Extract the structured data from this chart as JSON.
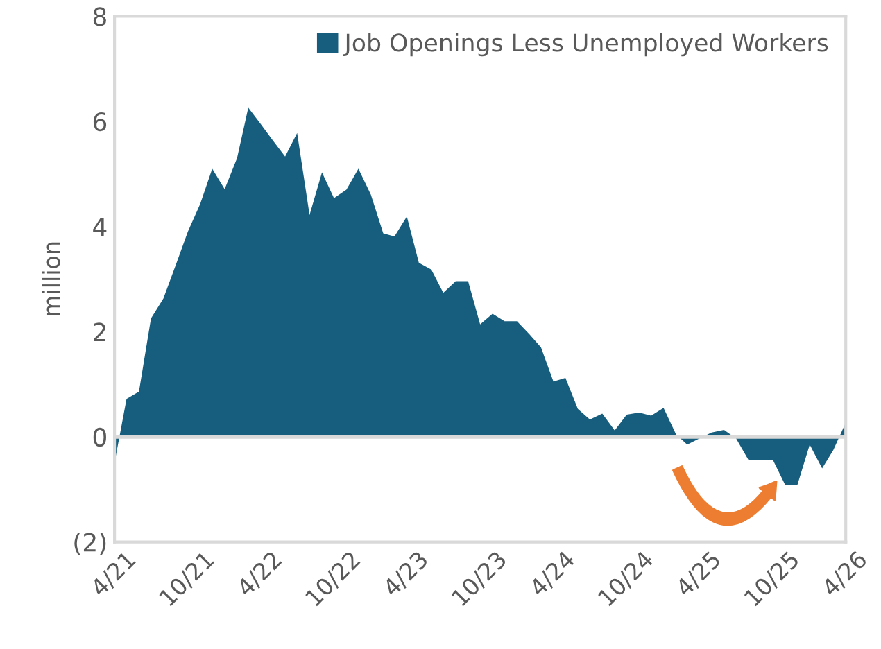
{
  "chart_data": {
    "type": "area",
    "ylabel": "million",
    "x": [
      "2021-04",
      "2021-05",
      "2021-06",
      "2021-07",
      "2021-08",
      "2021-09",
      "2021-10",
      "2021-11",
      "2021-12",
      "2022-01",
      "2022-02",
      "2022-03",
      "2022-04",
      "2022-05",
      "2022-06",
      "2022-07",
      "2022-08",
      "2022-09",
      "2022-10",
      "2022-11",
      "2022-12",
      "2023-01",
      "2023-02",
      "2023-03",
      "2023-04",
      "2023-05",
      "2023-06",
      "2023-07",
      "2023-08",
      "2023-09",
      "2023-10",
      "2023-11",
      "2023-12",
      "2024-01",
      "2024-02",
      "2024-03",
      "2024-04",
      "2024-05",
      "2024-06",
      "2024-07",
      "2024-08",
      "2024-09",
      "2024-10",
      "2024-11",
      "2024-12",
      "2025-01",
      "2025-02",
      "2025-03",
      "2025-04",
      "2025-05",
      "2025-06",
      "2025-07",
      "2025-08",
      "2025-09",
      "2025-10",
      "2025-11",
      "2025-12",
      "2026-01",
      "2026-02",
      "2026-03",
      "2026-04"
    ],
    "series": [
      {
        "name": "Job Openings Less Unemployed Workers",
        "color": "#175e7e",
        "values": [
          -0.5,
          0.72,
          0.86,
          2.25,
          2.63,
          3.27,
          3.9,
          4.43,
          5.1,
          4.71,
          5.3,
          6.26,
          5.95,
          5.64,
          5.33,
          5.78,
          4.22,
          5.03,
          4.54,
          4.7,
          5.1,
          4.61,
          3.87,
          3.81,
          4.19,
          3.31,
          3.18,
          2.74,
          2.96,
          2.96,
          2.14,
          2.34,
          2.2,
          2.2,
          1.95,
          1.7,
          1.05,
          1.12,
          0.53,
          0.33,
          0.44,
          0.12,
          0.42,
          0.46,
          0.4,
          0.55,
          0.05,
          -0.15,
          -0.03,
          0.08,
          0.13,
          -0.03,
          -0.44,
          -0.44,
          -0.44,
          -0.92,
          -0.92,
          -0.15,
          -0.6,
          -0.25,
          0.27
        ]
      }
    ],
    "xlim": [
      "2021-04",
      "2026-04"
    ],
    "xticks": [
      {
        "value": "2021-04",
        "label": "4/21"
      },
      {
        "value": "2021-10",
        "label": "10/21"
      },
      {
        "value": "2022-04",
        "label": "4/22"
      },
      {
        "value": "2022-10",
        "label": "10/22"
      },
      {
        "value": "2023-04",
        "label": "4/23"
      },
      {
        "value": "2023-10",
        "label": "10/23"
      },
      {
        "value": "2024-04",
        "label": "4/24"
      },
      {
        "value": "2024-10",
        "label": "10/24"
      },
      {
        "value": "2025-04",
        "label": "4/25"
      },
      {
        "value": "2025-10",
        "label": "10/25"
      },
      {
        "value": "2026-04",
        "label": "4/26"
      }
    ],
    "ylim": [
      -2,
      8
    ],
    "yticks": [
      {
        "value": -2,
        "label": "(2)"
      },
      0,
      2,
      4,
      6,
      8
    ],
    "ref_lines": [
      {
        "axis": "y",
        "value": 0,
        "color": "#d9d9d9"
      }
    ],
    "grid": false,
    "legend": "top right"
  }
}
